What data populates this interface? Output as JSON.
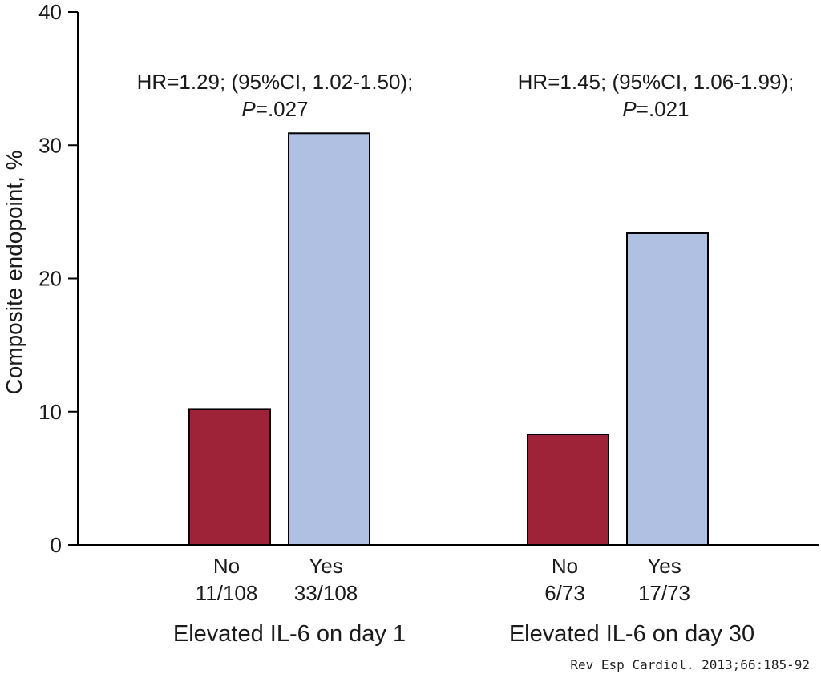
{
  "chart_data": {
    "type": "bar",
    "ylabel": "Composite endopoint, %",
    "ylim": [
      0,
      40
    ],
    "yticks": [
      0,
      10,
      20,
      30,
      40
    ],
    "groups": [
      {
        "label": "Elevated IL-6 on day 1",
        "hr_text": "HR=1.29; (95%CI, 1.02-1.50);",
        "p_label": "P",
        "p_value": "=.027",
        "bars": [
          {
            "category": "No",
            "count": "11/108",
            "value": 10.2,
            "color": "#9e2339"
          },
          {
            "category": "Yes",
            "count": "33/108",
            "value": 30.9,
            "color": "#afc0e3"
          }
        ]
      },
      {
        "label": "Elevated IL-6 on day 30",
        "hr_text": "HR=1.45; (95%CI, 1.06-1.99);",
        "p_label": "P",
        "p_value": "=.021",
        "bars": [
          {
            "category": "No",
            "count": "6/73",
            "value": 8.3,
            "color": "#9e2339"
          },
          {
            "category": "Yes",
            "count": "17/73",
            "value": 23.4,
            "color": "#afc0e3"
          }
        ]
      }
    ]
  },
  "citation": "Rev Esp Cardiol. 2013;66:185-92"
}
